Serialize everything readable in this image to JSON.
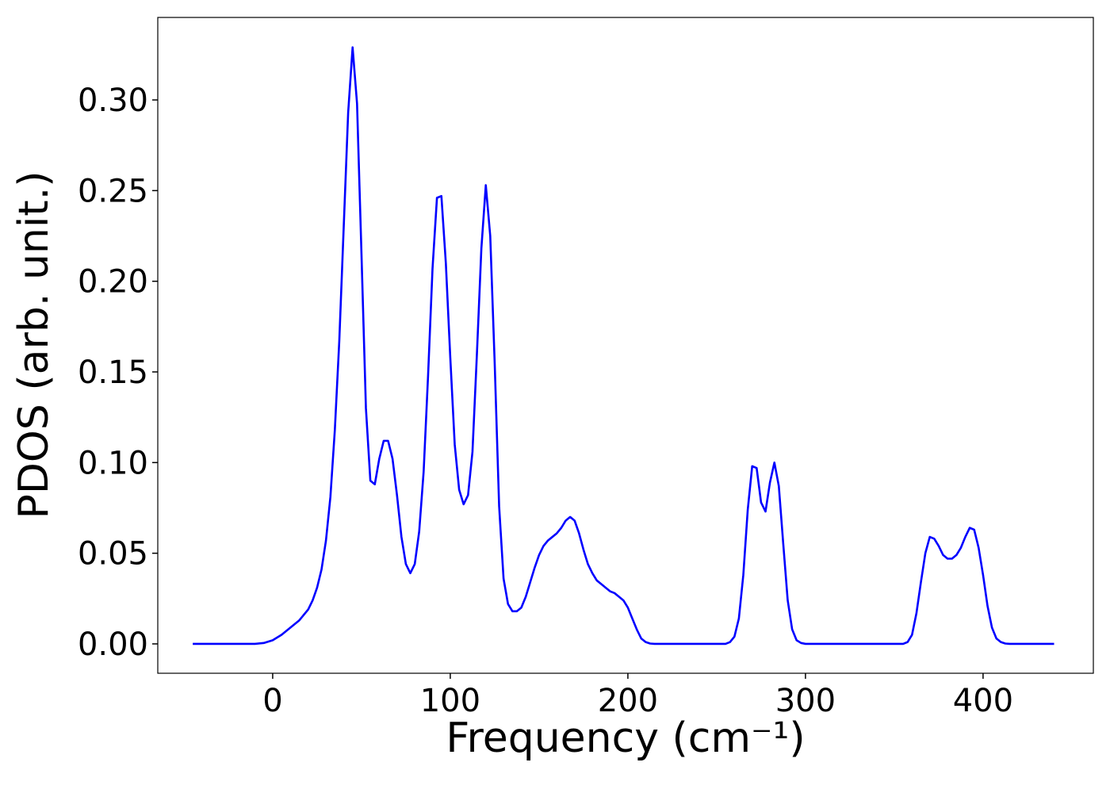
{
  "chart_data": {
    "type": "line",
    "x_label": "Frequency (cm⁻¹)",
    "y_label": "PDOS (arb. unit.)",
    "color": "#0000ff",
    "xlim": [
      -64.7,
      462.1
    ],
    "ylim": [
      -0.0162,
      0.3455
    ],
    "xticks": [
      0,
      100,
      200,
      300,
      400
    ],
    "yticks": [
      {
        "value": 0,
        "label": "0.00"
      },
      {
        "value": 0.05,
        "label": "0.05"
      },
      {
        "value": 0.1,
        "label": "0.10"
      },
      {
        "value": 0.15,
        "label": "0.15"
      },
      {
        "value": 0.2,
        "label": "0.20"
      },
      {
        "value": 0.25,
        "label": "0.25"
      },
      {
        "value": 0.3,
        "label": "0.30"
      }
    ],
    "x": [
      -45,
      -10,
      -5,
      0,
      5,
      10,
      15,
      20,
      22.5,
      25,
      27.5,
      30,
      32.5,
      35,
      37.5,
      40,
      42.5,
      45,
      47.5,
      50,
      52.5,
      55,
      57.5,
      60,
      62.5,
      65,
      67.5,
      70,
      72.5,
      75,
      77.5,
      80,
      82.5,
      85,
      87.5,
      90,
      92.5,
      95,
      97.5,
      100,
      102.5,
      105,
      107.5,
      110,
      112.5,
      115,
      117.5,
      120,
      122.5,
      125,
      127.5,
      130,
      132.5,
      135,
      137.5,
      140,
      142.5,
      145,
      147.5,
      150,
      152.5,
      155,
      157.5,
      160,
      162.5,
      165,
      167.5,
      170,
      172.5,
      175,
      177.5,
      180,
      182.5,
      185,
      187.5,
      190,
      192.5,
      195,
      197.5,
      200,
      202.5,
      205,
      207.5,
      210,
      212.5,
      215,
      255,
      257.5,
      260,
      262.5,
      265,
      267.5,
      270,
      272.5,
      275,
      277.5,
      280,
      282.5,
      285,
      287.5,
      290,
      292.5,
      295,
      297.5,
      300,
      355,
      357.5,
      360,
      362.5,
      365,
      367.5,
      370,
      372.5,
      375,
      377.5,
      380,
      382.5,
      385,
      387.5,
      390,
      392.5,
      395,
      397.5,
      400,
      402.5,
      405,
      407.5,
      410,
      412.5,
      415,
      440
    ],
    "values": [
      0,
      0,
      0.0005,
      0.002,
      0.005,
      0.009,
      0.013,
      0.019,
      0.024,
      0.031,
      0.041,
      0.057,
      0.081,
      0.118,
      0.167,
      0.23,
      0.293,
      0.329,
      0.298,
      0.215,
      0.13,
      0.09,
      0.088,
      0.102,
      0.112,
      0.112,
      0.102,
      0.082,
      0.059,
      0.044,
      0.039,
      0.044,
      0.062,
      0.095,
      0.148,
      0.207,
      0.246,
      0.247,
      0.21,
      0.158,
      0.11,
      0.085,
      0.077,
      0.082,
      0.106,
      0.16,
      0.218,
      0.253,
      0.225,
      0.155,
      0.076,
      0.036,
      0.022,
      0.018,
      0.018,
      0.02,
      0.026,
      0.034,
      0.042,
      0.049,
      0.054,
      0.057,
      0.059,
      0.061,
      0.064,
      0.068,
      0.07,
      0.068,
      0.061,
      0.052,
      0.044,
      0.039,
      0.035,
      0.033,
      0.031,
      0.029,
      0.028,
      0.026,
      0.024,
      0.02,
      0.014,
      0.008,
      0.003,
      0.001,
      0.0002,
      0,
      0,
      0.001,
      0.004,
      0.014,
      0.038,
      0.074,
      0.098,
      0.097,
      0.078,
      0.073,
      0.089,
      0.1,
      0.087,
      0.055,
      0.024,
      0.008,
      0.002,
      0.0005,
      0,
      0,
      0.001,
      0.005,
      0.017,
      0.034,
      0.05,
      0.059,
      0.058,
      0.054,
      0.049,
      0.047,
      0.047,
      0.049,
      0.053,
      0.059,
      0.064,
      0.063,
      0.053,
      0.038,
      0.021,
      0.009,
      0.003,
      0.001,
      0.0002,
      0,
      0
    ]
  }
}
